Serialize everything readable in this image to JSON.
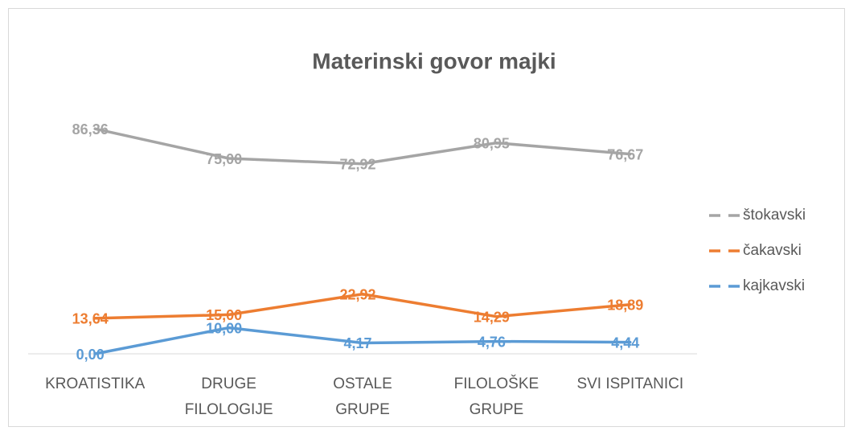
{
  "chart_data": {
    "type": "line",
    "title": "Materinski govor majki",
    "categories": [
      "KROATISTIKA",
      "DRUGE\nFILOLOGIJE",
      "OSTALE\nGRUPE",
      "FILOLOŠKE\nGRUPE",
      "SVI ISPITANICI"
    ],
    "series": [
      {
        "name": "štokavski",
        "color": "#a5a5a5",
        "values": [
          86.36,
          75.0,
          72.92,
          80.95,
          76.67
        ],
        "value_labels": [
          "86,36",
          "75,00",
          "72,92",
          "80,95",
          "76,67"
        ]
      },
      {
        "name": "čakavski",
        "color": "#ed7d31",
        "values": [
          13.64,
          15.0,
          22.92,
          14.29,
          18.89
        ],
        "value_labels": [
          "13,64",
          "15,00",
          "22,92",
          "14,29",
          "18,89"
        ]
      },
      {
        "name": "kajkavski",
        "color": "#5b9bd5",
        "values": [
          0.0,
          10.0,
          4.17,
          4.76,
          4.44
        ],
        "value_labels": [
          "0,00",
          "10,00",
          "4,17",
          "4,76",
          "4,44"
        ]
      }
    ],
    "ylim": [
      0,
      100
    ],
    "grid": false,
    "legend": "right"
  }
}
